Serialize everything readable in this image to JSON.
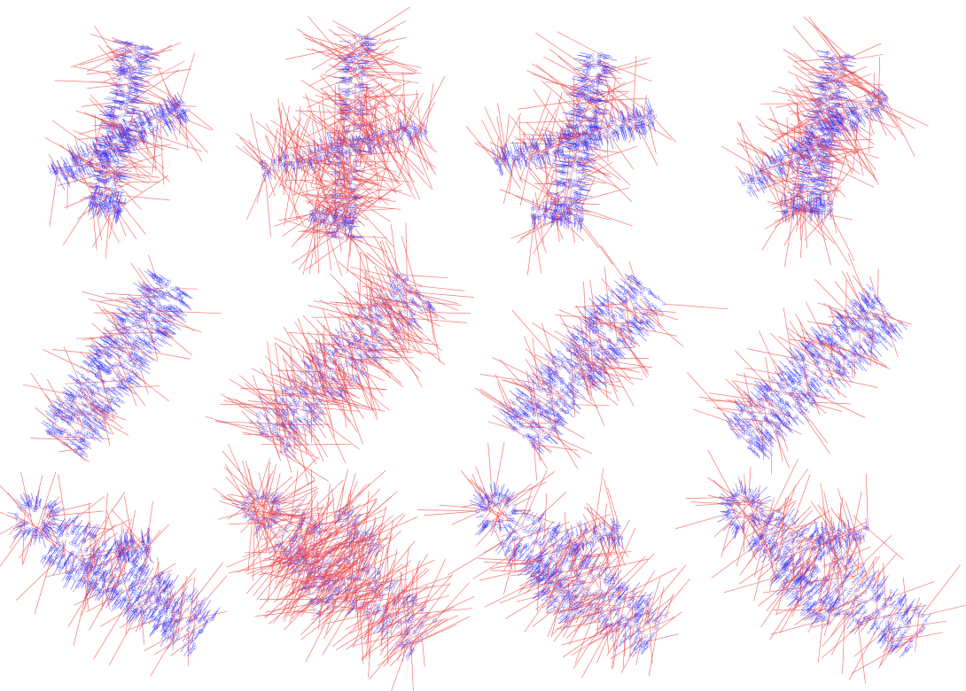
{
  "figure": {
    "colors": {
      "normal_blue": "#2b2bff",
      "normal_red": "#f04a4a",
      "point_blue": "#3a3aff",
      "background": "#ffffff"
    },
    "rows": [
      {
        "shape": "airplane",
        "panels": [
          {
            "id": "airplane-1",
            "red_ratio": 0.22
          },
          {
            "id": "airplane-2",
            "red_ratio": 0.62
          },
          {
            "id": "airplane-3",
            "red_ratio": 0.3
          },
          {
            "id": "airplane-4",
            "red_ratio": 0.35
          }
        ]
      },
      {
        "shape": "cylinder",
        "panels": [
          {
            "id": "cylinder-1",
            "red_ratio": 0.2
          },
          {
            "id": "cylinder-2",
            "red_ratio": 0.6
          },
          {
            "id": "cylinder-3",
            "red_ratio": 0.22
          },
          {
            "id": "cylinder-4",
            "red_ratio": 0.25
          }
        ]
      },
      {
        "shape": "person",
        "panels": [
          {
            "id": "person-1",
            "red_ratio": 0.2
          },
          {
            "id": "person-2",
            "red_ratio": 0.75
          },
          {
            "id": "person-3",
            "red_ratio": 0.35
          },
          {
            "id": "person-4",
            "red_ratio": 0.3
          }
        ]
      }
    ]
  }
}
